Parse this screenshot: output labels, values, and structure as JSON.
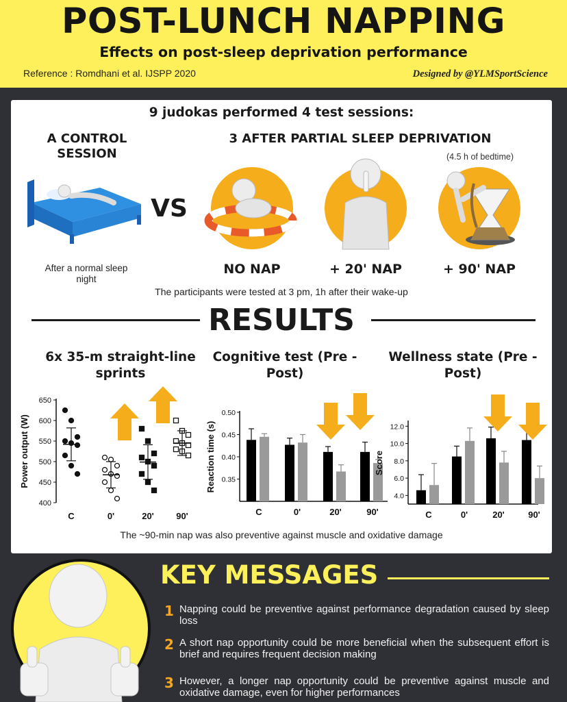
{
  "header": {
    "title": "POST-LUNCH NAPPING",
    "subtitle": "Effects on post-sleep deprivation performance",
    "reference": "Reference : Romdhani et al. IJSPP 2020",
    "credit": "Designed by @YLMSportScience"
  },
  "design": {
    "session": {
      "intro": "9 judokas performed 4 test sessions:",
      "control_heading": "A CONTROL SESSION",
      "deprivation_heading": "3 AFTER PARTIAL SLEEP DEPRIVATION",
      "bedtime_note": "(4.5 h of bedtime)",
      "vs": "VS",
      "control_caption": "After a normal sleep night",
      "conditions": [
        "NO NAP",
        "+ 20' NAP",
        "+ 90' NAP"
      ],
      "test_note": "The participants were tested at 3 pm, 1h after their wake-up"
    },
    "results_heading": "RESULTS",
    "results_note": "The ~90-min nap was also preventive against muscle and oxidative damage"
  },
  "colors": {
    "yellow": "#fdf05a",
    "orange": "#f5ad1c",
    "dark": "#2f3035",
    "bar_pre": "#000000",
    "bar_post": "#9a9a9a"
  },
  "chart_data": [
    {
      "type": "scatter",
      "title": "6x 35-m straight-line sprints",
      "ylabel": "Power output (W)",
      "categories": [
        "C",
        "0'",
        "20'",
        "90'"
      ],
      "yticks": [
        "400",
        "450",
        "500",
        "550",
        "600",
        "650"
      ],
      "ylim": [
        400,
        650
      ],
      "means": [
        542,
        468,
        499,
        545
      ],
      "sd": [
        40,
        32,
        42,
        30
      ],
      "markers": [
        "filled-circle",
        "open-circle",
        "filled-square",
        "open-square"
      ],
      "points": [
        [
          625,
          600,
          560,
          550,
          545,
          540,
          515,
          490,
          470
        ],
        [
          510,
          505,
          490,
          480,
          470,
          465,
          450,
          430,
          410
        ],
        [
          580,
          550,
          520,
          510,
          500,
          490,
          470,
          450,
          430
        ],
        [
          600,
          575,
          565,
          550,
          545,
          540,
          530,
          525,
          515
        ]
      ],
      "arrows_up": [
        "0'",
        "20'"
      ]
    },
    {
      "type": "bar",
      "title": "Cognitive test (Pre - Post)",
      "ylabel": "Reaction time (s)",
      "categories": [
        "C",
        "0'",
        "20'",
        "90'"
      ],
      "yticks": [
        "0.35",
        "0.40",
        "0.45",
        "0.50"
      ],
      "ylim": [
        0.3,
        0.5
      ],
      "series": [
        {
          "values": [
            0.438,
            0.427,
            0.411,
            0.411
          ],
          "errors": [
            0.025,
            0.015,
            0.012,
            0.022
          ]
        },
        {
          "values": [
            0.445,
            0.432,
            0.367,
            0.386
          ],
          "errors": [
            0.007,
            0.018,
            0.015,
            0.008
          ]
        }
      ],
      "arrows_down": [
        "20'",
        "90'"
      ]
    },
    {
      "type": "bar",
      "title": "Wellness state (Pre - Post)",
      "ylabel": "Score",
      "categories": [
        "C",
        "0'",
        "20'",
        "90'"
      ],
      "yticks": [
        "4.0",
        "6.0",
        "8.0",
        "10.0",
        "12.0"
      ],
      "ylim": [
        3,
        12.5
      ],
      "series": [
        {
          "values": [
            4.6,
            8.5,
            10.6,
            10.4
          ],
          "errors": [
            1.8,
            1.2,
            1.3,
            1.2
          ]
        },
        {
          "values": [
            5.2,
            10.3,
            7.8,
            6.0
          ],
          "errors": [
            2.5,
            1.5,
            1.3,
            1.4
          ]
        }
      ],
      "arrows_down": [
        "20'",
        "90'"
      ]
    }
  ],
  "key_messages": {
    "heading": "KEY MESSAGES",
    "items": [
      {
        "num": "1",
        "text": "Napping could be preventive against performance degradation caused by sleep loss"
      },
      {
        "num": "2",
        "text": "A short nap opportunity could be more beneficial when the subsequent effort is brief and requires frequent decision making"
      },
      {
        "num": "3",
        "text": "However, a longer nap opportunity could be preventive against muscle and oxidative damage, even for higher performances"
      }
    ]
  }
}
